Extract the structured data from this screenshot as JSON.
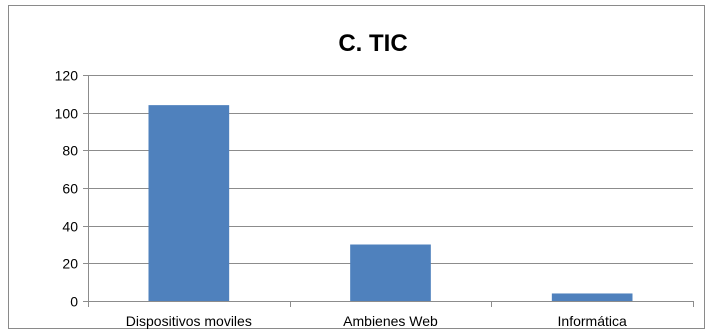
{
  "chart_data": {
    "type": "bar",
    "title": "C. TIC",
    "categories": [
      "Dispositivos moviles",
      "Ambienes Web",
      "Informática"
    ],
    "values": [
      104,
      30,
      4
    ],
    "ylim": [
      0,
      120
    ],
    "yticks": [
      0,
      20,
      40,
      60,
      80,
      100,
      120
    ],
    "grid": true,
    "legend": "none",
    "bar_color": "#4f81bd",
    "grid_color": "#8c8c8c"
  }
}
